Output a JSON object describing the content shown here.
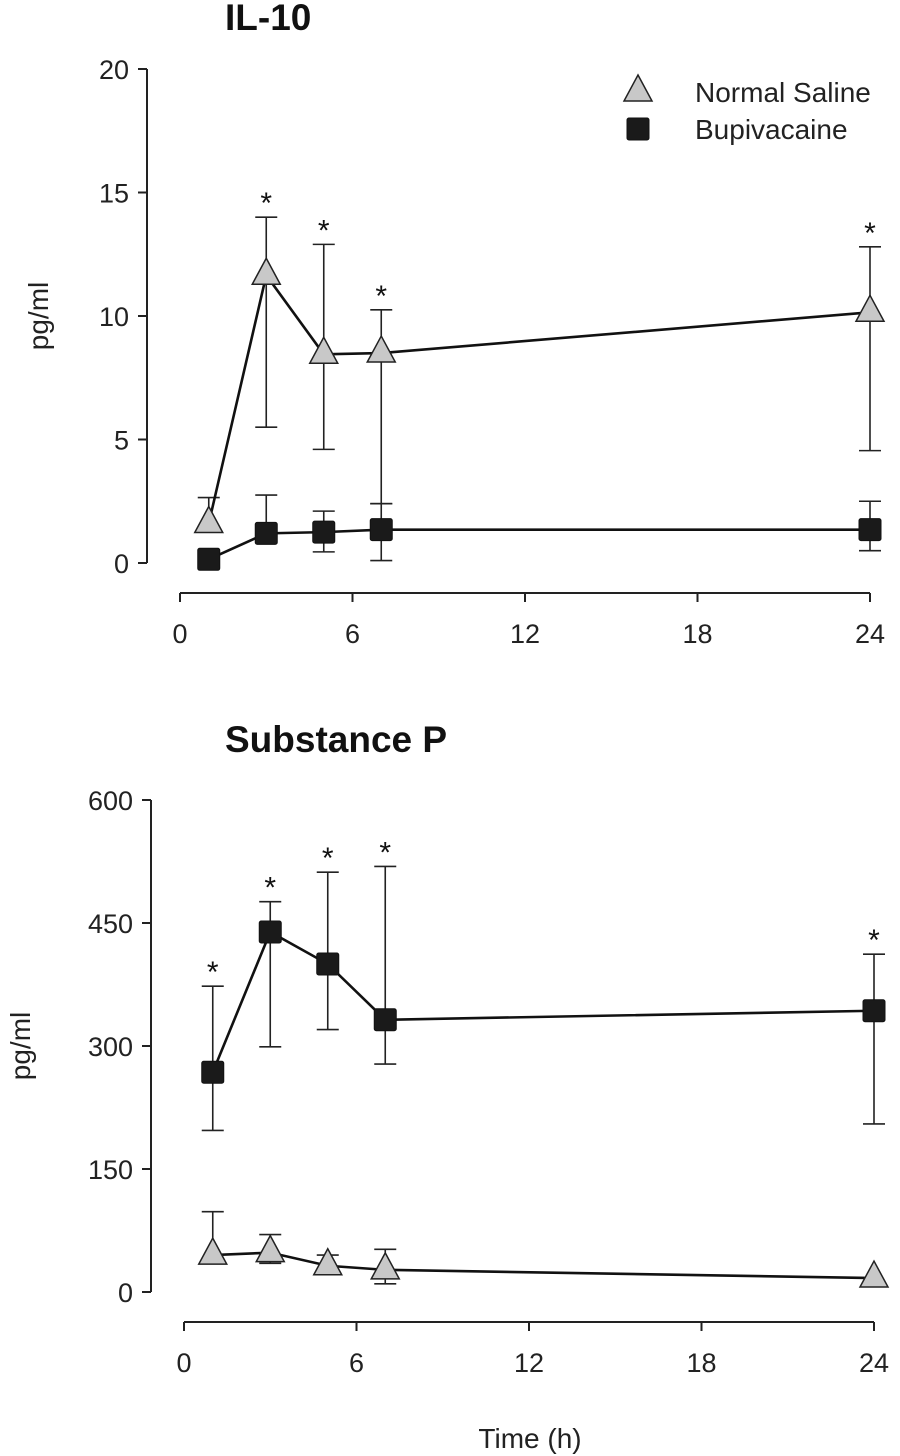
{
  "chart_data": [
    {
      "type": "line",
      "title": "IL-10",
      "xlabel": "",
      "ylabel": "pg/ml",
      "xlim": [
        0,
        25
      ],
      "ylim": [
        0,
        20
      ],
      "xticks": [
        0,
        6,
        12,
        18,
        24
      ],
      "yticks": [
        0,
        5,
        10,
        15,
        20
      ],
      "legend": "top-right",
      "grid": false,
      "x": [
        1,
        3,
        5,
        7,
        24
      ],
      "series": [
        {
          "name": "Normal Saline",
          "marker": "triangle",
          "color": "#c8c8c8",
          "values": [
            1.6,
            11.65,
            8.45,
            8.5,
            10.15
          ],
          "err_low": [
            1.6,
            5.5,
            4.6,
            2.4,
            4.55
          ],
          "err_high": [
            2.65,
            14.0,
            12.9,
            10.25,
            12.8
          ]
        },
        {
          "name": "Bupivacaine",
          "marker": "square",
          "color": "#1a1a1a",
          "values": [
            0.15,
            1.2,
            1.25,
            1.35,
            1.35
          ],
          "err_low": [
            0.15,
            1.2,
            0.45,
            0.1,
            0.5
          ],
          "err_high": [
            0.15,
            2.75,
            2.1,
            2.4,
            2.5
          ]
        }
      ],
      "significance_marks": {
        "symbol": "*",
        "x": [
          3,
          5,
          7,
          24
        ],
        "series": "Normal Saline"
      }
    },
    {
      "type": "line",
      "title": "Substance P",
      "xlabel": "Time (h)",
      "ylabel": "pg/ml",
      "xlim": [
        0,
        25
      ],
      "ylim": [
        0,
        600
      ],
      "xticks": [
        0,
        6,
        12,
        18,
        24
      ],
      "yticks": [
        0,
        150,
        300,
        450,
        600
      ],
      "grid": false,
      "x": [
        1,
        3,
        5,
        7,
        24
      ],
      "series": [
        {
          "name": "Bupivacaine",
          "marker": "square",
          "color": "#1a1a1a",
          "values": [
            268,
            439,
            400,
            332,
            343
          ],
          "err_low": [
            197,
            299,
            320,
            278,
            205
          ],
          "err_high": [
            373,
            476,
            512,
            519,
            412
          ]
        },
        {
          "name": "Normal Saline",
          "marker": "triangle",
          "color": "#c8c8c8",
          "values": [
            45,
            48,
            32,
            27,
            17
          ],
          "err_low": [
            45,
            35,
            32,
            10,
            17
          ],
          "err_high": [
            98,
            70,
            45,
            52,
            17
          ]
        }
      ],
      "significance_marks": {
        "symbol": "*",
        "x": [
          1,
          3,
          5,
          7,
          24
        ],
        "series": "Bupivacaine"
      }
    }
  ]
}
